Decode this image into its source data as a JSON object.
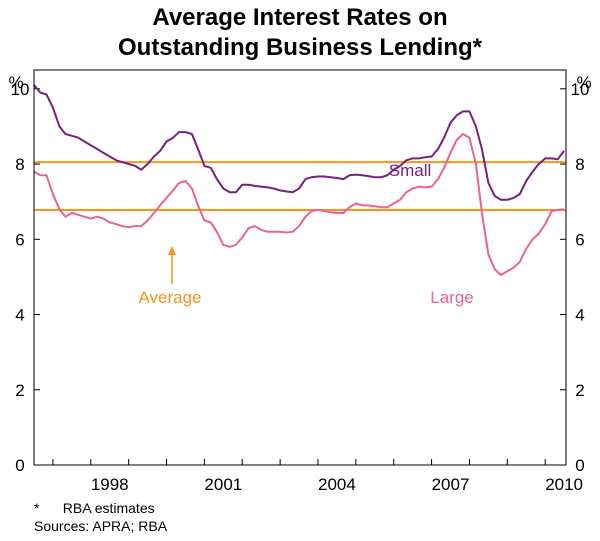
{
  "chart_data": {
    "type": "line",
    "title_lines": [
      "Average Interest Rates on",
      "Outstanding Business Lending*"
    ],
    "y_unit_left": "%",
    "y_unit_right": "%",
    "ylim": [
      0,
      10.5
    ],
    "yticks": [
      0,
      2,
      4,
      6,
      8,
      10
    ],
    "xlim": [
      1996.5,
      2010.55
    ],
    "xticks": [
      1998,
      2001,
      2004,
      2007,
      2010
    ],
    "series": [
      {
        "name": "Small",
        "color": "#7a1f82",
        "points": [
          [
            1996.5,
            10.1
          ],
          [
            1996.67,
            9.9
          ],
          [
            1996.83,
            9.85
          ],
          [
            1997.0,
            9.5
          ],
          [
            1997.17,
            9.0
          ],
          [
            1997.33,
            8.8
          ],
          [
            1997.5,
            8.75
          ],
          [
            1997.67,
            8.7
          ],
          [
            1997.83,
            8.6
          ],
          [
            1998.0,
            8.5
          ],
          [
            1998.17,
            8.4
          ],
          [
            1998.33,
            8.3
          ],
          [
            1998.5,
            8.2
          ],
          [
            1998.67,
            8.1
          ],
          [
            1998.83,
            8.05
          ],
          [
            1999.0,
            8.0
          ],
          [
            1999.17,
            7.95
          ],
          [
            1999.33,
            7.85
          ],
          [
            1999.5,
            8.0
          ],
          [
            1999.67,
            8.2
          ],
          [
            1999.83,
            8.35
          ],
          [
            2000.0,
            8.6
          ],
          [
            2000.17,
            8.7
          ],
          [
            2000.33,
            8.85
          ],
          [
            2000.5,
            8.85
          ],
          [
            2000.67,
            8.8
          ],
          [
            2000.83,
            8.4
          ],
          [
            2001.0,
            7.95
          ],
          [
            2001.17,
            7.9
          ],
          [
            2001.33,
            7.6
          ],
          [
            2001.5,
            7.35
          ],
          [
            2001.67,
            7.25
          ],
          [
            2001.83,
            7.25
          ],
          [
            2002.0,
            7.45
          ],
          [
            2002.17,
            7.45
          ],
          [
            2002.33,
            7.42
          ],
          [
            2002.5,
            7.4
          ],
          [
            2002.67,
            7.38
          ],
          [
            2002.83,
            7.35
          ],
          [
            2003.0,
            7.3
          ],
          [
            2003.17,
            7.27
          ],
          [
            2003.33,
            7.25
          ],
          [
            2003.5,
            7.35
          ],
          [
            2003.67,
            7.6
          ],
          [
            2003.83,
            7.65
          ],
          [
            2004.0,
            7.67
          ],
          [
            2004.17,
            7.67
          ],
          [
            2004.33,
            7.65
          ],
          [
            2004.5,
            7.63
          ],
          [
            2004.67,
            7.6
          ],
          [
            2004.83,
            7.7
          ],
          [
            2005.0,
            7.72
          ],
          [
            2005.17,
            7.7
          ],
          [
            2005.33,
            7.68
          ],
          [
            2005.5,
            7.65
          ],
          [
            2005.67,
            7.65
          ],
          [
            2005.83,
            7.7
          ],
          [
            2006.0,
            7.85
          ],
          [
            2006.17,
            7.95
          ],
          [
            2006.33,
            8.1
          ],
          [
            2006.5,
            8.15
          ],
          [
            2006.67,
            8.15
          ],
          [
            2006.83,
            8.18
          ],
          [
            2007.0,
            8.2
          ],
          [
            2007.17,
            8.4
          ],
          [
            2007.33,
            8.7
          ],
          [
            2007.5,
            9.1
          ],
          [
            2007.67,
            9.3
          ],
          [
            2007.83,
            9.4
          ],
          [
            2008.0,
            9.4
          ],
          [
            2008.17,
            9.0
          ],
          [
            2008.33,
            8.4
          ],
          [
            2008.5,
            7.5
          ],
          [
            2008.67,
            7.15
          ],
          [
            2008.83,
            7.05
          ],
          [
            2009.0,
            7.05
          ],
          [
            2009.17,
            7.1
          ],
          [
            2009.33,
            7.2
          ],
          [
            2009.5,
            7.55
          ],
          [
            2009.67,
            7.8
          ],
          [
            2009.83,
            8.0
          ],
          [
            2010.0,
            8.15
          ],
          [
            2010.17,
            8.15
          ],
          [
            2010.33,
            8.13
          ],
          [
            2010.5,
            8.35
          ]
        ]
      },
      {
        "name": "Large",
        "color": "#e8629b",
        "points": [
          [
            1996.5,
            7.8
          ],
          [
            1996.67,
            7.7
          ],
          [
            1996.83,
            7.7
          ],
          [
            1997.0,
            7.2
          ],
          [
            1997.17,
            6.8
          ],
          [
            1997.33,
            6.6
          ],
          [
            1997.5,
            6.7
          ],
          [
            1997.67,
            6.65
          ],
          [
            1997.83,
            6.6
          ],
          [
            1998.0,
            6.55
          ],
          [
            1998.17,
            6.6
          ],
          [
            1998.33,
            6.55
          ],
          [
            1998.5,
            6.45
          ],
          [
            1998.67,
            6.4
          ],
          [
            1998.83,
            6.35
          ],
          [
            1999.0,
            6.32
          ],
          [
            1999.17,
            6.35
          ],
          [
            1999.33,
            6.35
          ],
          [
            1999.5,
            6.5
          ],
          [
            1999.67,
            6.7
          ],
          [
            1999.83,
            6.9
          ],
          [
            2000.0,
            7.1
          ],
          [
            2000.17,
            7.3
          ],
          [
            2000.33,
            7.5
          ],
          [
            2000.5,
            7.55
          ],
          [
            2000.67,
            7.35
          ],
          [
            2000.83,
            6.9
          ],
          [
            2001.0,
            6.5
          ],
          [
            2001.17,
            6.45
          ],
          [
            2001.33,
            6.2
          ],
          [
            2001.5,
            5.85
          ],
          [
            2001.67,
            5.8
          ],
          [
            2001.83,
            5.85
          ],
          [
            2002.0,
            6.05
          ],
          [
            2002.17,
            6.3
          ],
          [
            2002.33,
            6.35
          ],
          [
            2002.5,
            6.25
          ],
          [
            2002.67,
            6.2
          ],
          [
            2002.83,
            6.2
          ],
          [
            2003.0,
            6.2
          ],
          [
            2003.17,
            6.18
          ],
          [
            2003.33,
            6.2
          ],
          [
            2003.5,
            6.35
          ],
          [
            2003.67,
            6.6
          ],
          [
            2003.83,
            6.75
          ],
          [
            2004.0,
            6.78
          ],
          [
            2004.17,
            6.75
          ],
          [
            2004.33,
            6.72
          ],
          [
            2004.5,
            6.7
          ],
          [
            2004.67,
            6.7
          ],
          [
            2004.83,
            6.85
          ],
          [
            2005.0,
            6.95
          ],
          [
            2005.17,
            6.9
          ],
          [
            2005.33,
            6.9
          ],
          [
            2005.5,
            6.88
          ],
          [
            2005.67,
            6.85
          ],
          [
            2005.83,
            6.85
          ],
          [
            2006.0,
            6.95
          ],
          [
            2006.17,
            7.05
          ],
          [
            2006.33,
            7.25
          ],
          [
            2006.5,
            7.35
          ],
          [
            2006.67,
            7.4
          ],
          [
            2006.83,
            7.38
          ],
          [
            2007.0,
            7.4
          ],
          [
            2007.17,
            7.6
          ],
          [
            2007.33,
            7.9
          ],
          [
            2007.5,
            8.3
          ],
          [
            2007.67,
            8.65
          ],
          [
            2007.83,
            8.8
          ],
          [
            2008.0,
            8.7
          ],
          [
            2008.17,
            8.0
          ],
          [
            2008.33,
            6.7
          ],
          [
            2008.5,
            5.6
          ],
          [
            2008.67,
            5.2
          ],
          [
            2008.83,
            5.05
          ],
          [
            2009.0,
            5.15
          ],
          [
            2009.17,
            5.25
          ],
          [
            2009.33,
            5.4
          ],
          [
            2009.5,
            5.75
          ],
          [
            2009.67,
            6.0
          ],
          [
            2009.83,
            6.15
          ],
          [
            2010.0,
            6.4
          ],
          [
            2010.17,
            6.75
          ],
          [
            2010.33,
            6.78
          ],
          [
            2010.5,
            6.8
          ]
        ]
      }
    ],
    "averages": [
      {
        "name": "Small average",
        "value": 8.05,
        "color": "#f7941d"
      },
      {
        "name": "Large average",
        "value": 6.78,
        "color": "#f7941d"
      }
    ],
    "annotations": [
      {
        "text": "Small",
        "color": "#7a1f82"
      },
      {
        "text": "Large",
        "color": "#e8629b"
      },
      {
        "text": "Average",
        "color": "#f7941d"
      }
    ]
  },
  "footnote": "*      RBA estimates",
  "sources": "Sources: APRA; RBA"
}
